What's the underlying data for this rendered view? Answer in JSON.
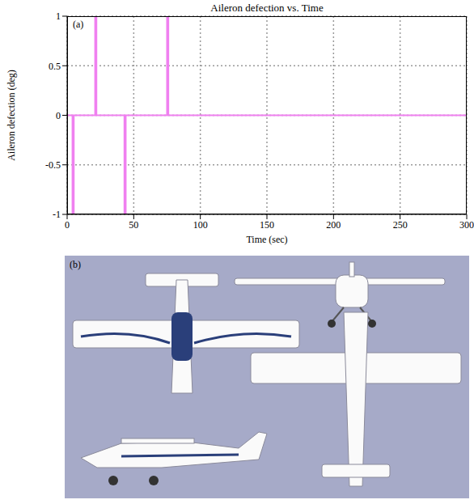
{
  "chart_data": {
    "type": "line",
    "title": "Aileron defection vs. Time",
    "x_label": "Time (sec)",
    "y_label": "Aileron defection (deg)",
    "annotations": [
      "(a)"
    ],
    "x": [
      0,
      4,
      4,
      5,
      5,
      21,
      21,
      22,
      22,
      43,
      43,
      44,
      44,
      75,
      75,
      76,
      76,
      300
    ],
    "values": [
      0,
      0,
      -1,
      -1,
      0,
      0,
      1,
      1,
      0,
      0,
      -1,
      -1,
      0,
      0,
      1,
      1,
      0,
      0
    ],
    "color": "#f080f0",
    "xlim": [
      0,
      300
    ],
    "xticks": [
      0,
      50,
      100,
      150,
      200,
      250,
      300
    ],
    "ylim": [
      -1,
      1
    ],
    "yticks": [
      -1,
      -0.5,
      0,
      0.5,
      1
    ],
    "grid": true
  },
  "image": {
    "label": "(b)"
  }
}
